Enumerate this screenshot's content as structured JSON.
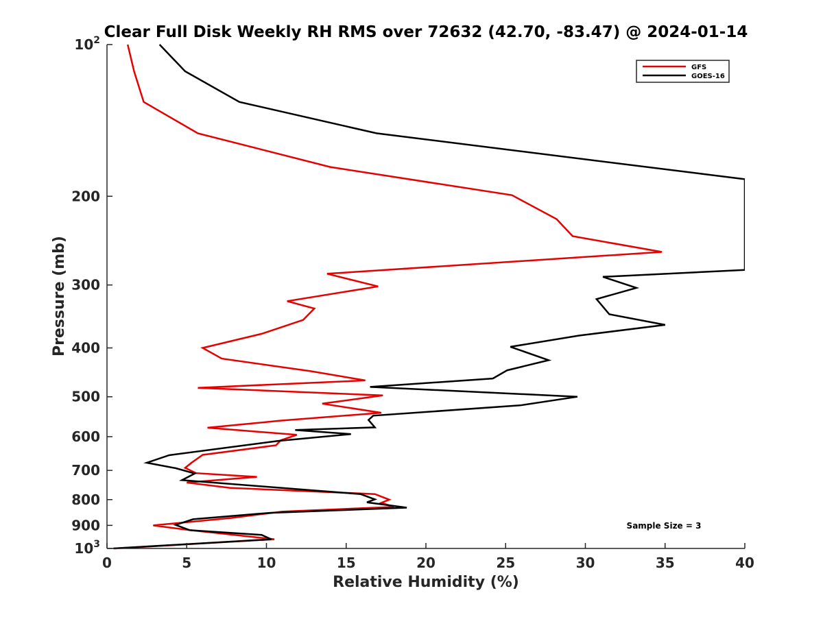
{
  "chart_data": {
    "type": "line",
    "title": "Clear Full Disk Weekly RH RMS over 72632 (42.70, -83.47) @ 2024-01-14",
    "xlabel": "Relative Humidity (%)",
    "ylabel": "Pressure (mb)",
    "xlim": [
      0,
      40
    ],
    "ylim": [
      100,
      1000
    ],
    "y_scale": "log",
    "y_reversed": true,
    "grid": false,
    "x_ticks": [
      0,
      5,
      10,
      15,
      20,
      25,
      30,
      35,
      40
    ],
    "x_tick_labels": [
      "0",
      "5",
      "10",
      "15",
      "20",
      "25",
      "30",
      "35",
      "40"
    ],
    "y_ticks": [
      100,
      200,
      300,
      400,
      500,
      600,
      700,
      800,
      900,
      1000
    ],
    "y_tick_labels": [
      {
        "base": "10",
        "sup": "2"
      },
      {
        "base": "200",
        "sup": ""
      },
      {
        "base": "300",
        "sup": ""
      },
      {
        "base": "400",
        "sup": ""
      },
      {
        "base": "500",
        "sup": ""
      },
      {
        "base": "600",
        "sup": ""
      },
      {
        "base": "700",
        "sup": ""
      },
      {
        "base": "800",
        "sup": ""
      },
      {
        "base": "900",
        "sup": ""
      },
      {
        "base": "10",
        "sup": "3"
      }
    ],
    "legend_position": "top-right",
    "annotation": "Sample Size = 3",
    "series": [
      {
        "name": "GFS",
        "color": "#e60000",
        "points": [
          [
            1.3,
            100
          ],
          [
            1.7,
            113
          ],
          [
            2.3,
            130
          ],
          [
            5.7,
            150
          ],
          [
            14,
            175
          ],
          [
            25.4,
            199
          ],
          [
            28.2,
            222
          ],
          [
            29.2,
            240
          ],
          [
            34.8,
            258
          ],
          [
            13.8,
            285
          ],
          [
            17,
            302
          ],
          [
            11.3,
            323
          ],
          [
            13,
            334
          ],
          [
            12.3,
            352
          ],
          [
            9.7,
            375
          ],
          [
            6,
            400
          ],
          [
            7.2,
            420
          ],
          [
            12.8,
            445
          ],
          [
            16.2,
            464
          ],
          [
            5.7,
            480
          ],
          [
            17.3,
            497
          ],
          [
            13.5,
            516
          ],
          [
            17.2,
            538
          ],
          [
            10.8,
            558
          ],
          [
            6.3,
            576
          ],
          [
            11.9,
            595
          ],
          [
            10.9,
            610
          ],
          [
            10.6,
            624
          ],
          [
            6,
            652
          ],
          [
            5.3,
            676
          ],
          [
            4.9,
            692
          ],
          [
            5.6,
            709
          ],
          [
            9.4,
            721
          ],
          [
            5,
            740
          ],
          [
            7.7,
            758
          ],
          [
            16.8,
            780
          ],
          [
            17.7,
            800
          ],
          [
            17.2,
            812
          ],
          [
            18,
            827
          ],
          [
            11,
            845
          ],
          [
            7.8,
            870
          ],
          [
            2.9,
            900
          ],
          [
            5.1,
            919
          ],
          [
            10.5,
            959
          ],
          [
            0.5,
            1000
          ]
        ]
      },
      {
        "name": "GOES-16",
        "color": "#000000",
        "points": [
          [
            3.3,
            100
          ],
          [
            4.9,
            113
          ],
          [
            8.3,
            130
          ],
          [
            16.9,
            150
          ],
          [
            40,
            185
          ],
          [
            40,
            280
          ],
          [
            31.1,
            289
          ],
          [
            33.2,
            304
          ],
          [
            30.7,
            320
          ],
          [
            31.5,
            343
          ],
          [
            35,
            360
          ],
          [
            29.6,
            378
          ],
          [
            25.3,
            398
          ],
          [
            27.7,
            423
          ],
          [
            25.1,
            443
          ],
          [
            24.2,
            460
          ],
          [
            16.5,
            478
          ],
          [
            29.5,
            500
          ],
          [
            25.9,
            520
          ],
          [
            16.7,
            545
          ],
          [
            16.4,
            556
          ],
          [
            16.8,
            575
          ],
          [
            11.8,
            582
          ],
          [
            15.3,
            593
          ],
          [
            10.7,
            612
          ],
          [
            3.9,
            653
          ],
          [
            2.5,
            676
          ],
          [
            4.3,
            693
          ],
          [
            5.5,
            710
          ],
          [
            4.7,
            732
          ],
          [
            15.9,
            780
          ],
          [
            16.8,
            799
          ],
          [
            16.3,
            810
          ],
          [
            18.8,
            830
          ],
          [
            10.2,
            850
          ],
          [
            5.4,
            875
          ],
          [
            4.3,
            898
          ],
          [
            5.2,
            920
          ],
          [
            9.7,
            940
          ],
          [
            10.3,
            959
          ],
          [
            0.4,
            1000
          ]
        ]
      }
    ]
  }
}
